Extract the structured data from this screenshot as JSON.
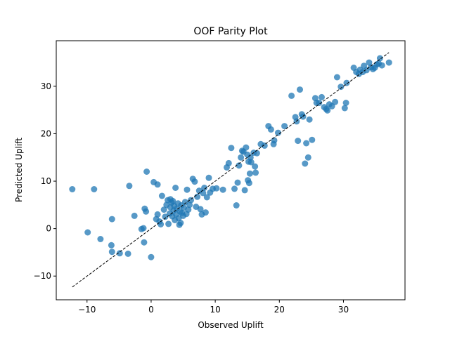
{
  "chart_data": {
    "type": "scatter",
    "title": "OOF Parity Plot",
    "xlabel": "Observed Uplift",
    "ylabel": "Predicted Uplift",
    "xlim": [
      -14.8,
      39.6
    ],
    "ylim": [
      -15.0,
      39.6
    ],
    "xticks": [
      -10,
      0,
      10,
      20,
      30
    ],
    "yticks": [
      -10,
      0,
      10,
      20,
      30
    ],
    "grid": false,
    "point_color": "#1f77b4",
    "reference_line": {
      "from": [
        -12.3,
        -12.3
      ],
      "to": [
        37.1,
        37.1
      ],
      "style": "dashed",
      "color": "#000000"
    },
    "points": [
      [
        -12.3,
        8.3
      ],
      [
        -8.9,
        8.3
      ],
      [
        -9.9,
        -0.8
      ],
      [
        -7.9,
        -2.2
      ],
      [
        -6.1,
        2.0
      ],
      [
        -6.2,
        -3.5
      ],
      [
        -6.1,
        -4.9
      ],
      [
        -4.9,
        -5.2
      ],
      [
        -3.6,
        -5.3
      ],
      [
        -3.4,
        9.0
      ],
      [
        -2.6,
        2.7
      ],
      [
        -1.5,
        -0.1
      ],
      [
        -1.2,
        0.1
      ],
      [
        -1.0,
        4.2
      ],
      [
        -1.1,
        -2.9
      ],
      [
        -0.8,
        3.6
      ],
      [
        -0.7,
        12.0
      ],
      [
        0.0,
        -6.0
      ],
      [
        0.4,
        9.8
      ],
      [
        1.0,
        9.3
      ],
      [
        0.8,
        2.0
      ],
      [
        1.0,
        3.0
      ],
      [
        1.3,
        1.5
      ],
      [
        1.5,
        0.9
      ],
      [
        1.7,
        6.9
      ],
      [
        2.0,
        4.0
      ],
      [
        2.2,
        2.5
      ],
      [
        2.4,
        5.0
      ],
      [
        2.6,
        6.0
      ],
      [
        2.7,
        1.0
      ],
      [
        2.9,
        3.2
      ],
      [
        3.0,
        4.5
      ],
      [
        3.0,
        6.2
      ],
      [
        3.2,
        5.5
      ],
      [
        3.3,
        2.6
      ],
      [
        3.4,
        5.8
      ],
      [
        3.5,
        3.8
      ],
      [
        3.6,
        4.8
      ],
      [
        3.7,
        1.8
      ],
      [
        3.8,
        8.6
      ],
      [
        3.9,
        3.0
      ],
      [
        4.0,
        4.2
      ],
      [
        4.2,
        5.3
      ],
      [
        4.3,
        2.2
      ],
      [
        4.4,
        0.8
      ],
      [
        4.5,
        3.6
      ],
      [
        4.6,
        1.2
      ],
      [
        4.7,
        4.9
      ],
      [
        4.8,
        3.3
      ],
      [
        5.0,
        2.7
      ],
      [
        5.1,
        4.4
      ],
      [
        5.3,
        5.6
      ],
      [
        5.5,
        3.1
      ],
      [
        5.6,
        8.2
      ],
      [
        5.8,
        4.0
      ],
      [
        6.0,
        5.0
      ],
      [
        6.2,
        6.0
      ],
      [
        6.5,
        10.5
      ],
      [
        6.8,
        9.9
      ],
      [
        7.0,
        4.6
      ],
      [
        7.2,
        6.7
      ],
      [
        7.5,
        8.0
      ],
      [
        7.7,
        4.1
      ],
      [
        7.9,
        3.0
      ],
      [
        8.1,
        7.5
      ],
      [
        8.3,
        8.6
      ],
      [
        8.5,
        3.4
      ],
      [
        8.7,
        6.6
      ],
      [
        9.0,
        10.7
      ],
      [
        9.2,
        7.6
      ],
      [
        9.6,
        8.4
      ],
      [
        10.2,
        8.5
      ],
      [
        11.2,
        8.2
      ],
      [
        11.8,
        12.9
      ],
      [
        12.1,
        13.8
      ],
      [
        12.5,
        17.0
      ],
      [
        13.0,
        8.4
      ],
      [
        13.3,
        4.9
      ],
      [
        13.5,
        9.7
      ],
      [
        13.7,
        13.3
      ],
      [
        14.0,
        15.0
      ],
      [
        14.2,
        16.4
      ],
      [
        14.4,
        16.2
      ],
      [
        14.6,
        8.1
      ],
      [
        14.8,
        17.1
      ],
      [
        15.0,
        15.6
      ],
      [
        15.1,
        10.2
      ],
      [
        15.2,
        14.1
      ],
      [
        15.3,
        9.6
      ],
      [
        15.4,
        11.6
      ],
      [
        15.5,
        15.0
      ],
      [
        15.6,
        14.0
      ],
      [
        16.0,
        16.0
      ],
      [
        16.2,
        13.1
      ],
      [
        16.3,
        11.8
      ],
      [
        16.5,
        15.9
      ],
      [
        17.1,
        17.8
      ],
      [
        17.7,
        17.5
      ],
      [
        18.3,
        21.6
      ],
      [
        18.7,
        20.9
      ],
      [
        19.2,
        18.6
      ],
      [
        19.1,
        17.8
      ],
      [
        19.8,
        20.2
      ],
      [
        20.8,
        21.6
      ],
      [
        21.9,
        28.0
      ],
      [
        22.5,
        23.5
      ],
      [
        22.7,
        22.6
      ],
      [
        22.9,
        18.5
      ],
      [
        23.2,
        29.3
      ],
      [
        23.5,
        24.1
      ],
      [
        23.7,
        23.6
      ],
      [
        24.0,
        13.7
      ],
      [
        24.2,
        18.0
      ],
      [
        24.5,
        15.0
      ],
      [
        24.7,
        23.0
      ],
      [
        25.1,
        18.7
      ],
      [
        25.6,
        27.5
      ],
      [
        25.8,
        26.5
      ],
      [
        26.2,
        26.5
      ],
      [
        26.6,
        27.7
      ],
      [
        27.0,
        25.6
      ],
      [
        27.3,
        25.2
      ],
      [
        27.5,
        24.9
      ],
      [
        27.8,
        26.2
      ],
      [
        28.2,
        25.8
      ],
      [
        28.7,
        26.7
      ],
      [
        29.0,
        31.9
      ],
      [
        29.6,
        29.9
      ],
      [
        30.2,
        25.4
      ],
      [
        30.4,
        26.5
      ],
      [
        30.5,
        30.7
      ],
      [
        31.6,
        33.9
      ],
      [
        32.0,
        33.0
      ],
      [
        32.4,
        32.6
      ],
      [
        32.6,
        33.5
      ],
      [
        33.0,
        33.0
      ],
      [
        33.2,
        34.3
      ],
      [
        33.6,
        33.4
      ],
      [
        34.0,
        35.0
      ],
      [
        34.3,
        34.0
      ],
      [
        34.6,
        33.6
      ],
      [
        34.9,
        33.9
      ],
      [
        35.2,
        34.6
      ],
      [
        35.5,
        34.8
      ],
      [
        35.7,
        35.9
      ],
      [
        36.0,
        34.4
      ],
      [
        37.1,
        35.0
      ]
    ]
  }
}
